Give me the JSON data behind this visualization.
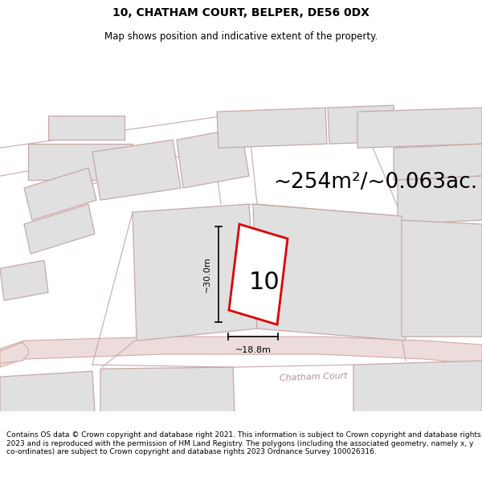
{
  "title": "10, CHATHAM COURT, BELPER, DE56 0DX",
  "subtitle": "Map shows position and indicative extent of the property.",
  "area_text": "~254m²/~0.063ac.",
  "number_label": "10",
  "dim_width": "~18.8m",
  "dim_height": "~30.0m",
  "footer_text": "Contains OS data © Crown copyright and database right 2021. This information is subject to Crown copyright and database rights 2023 and is reproduced with the permission of HM Land Registry. The polygons (including the associated geometry, namely x, y co-ordinates) are subject to Crown copyright and database rights 2023 Ordnance Survey 100026316.",
  "road_label": "Chatham Court",
  "bg_color": "#ffffff",
  "building_fill": "#e0e0e0",
  "building_edge": "#c8a8a8",
  "road_fill": "#eddcdc",
  "road_edge": "#d4a8a8",
  "plot_fill": "#ffffff",
  "plot_edge": "#dd0000",
  "title_fontsize": 10,
  "subtitle_fontsize": 8.5,
  "area_fontsize": 19,
  "number_fontsize": 22,
  "dim_fontsize": 8,
  "footer_fontsize": 6.5
}
